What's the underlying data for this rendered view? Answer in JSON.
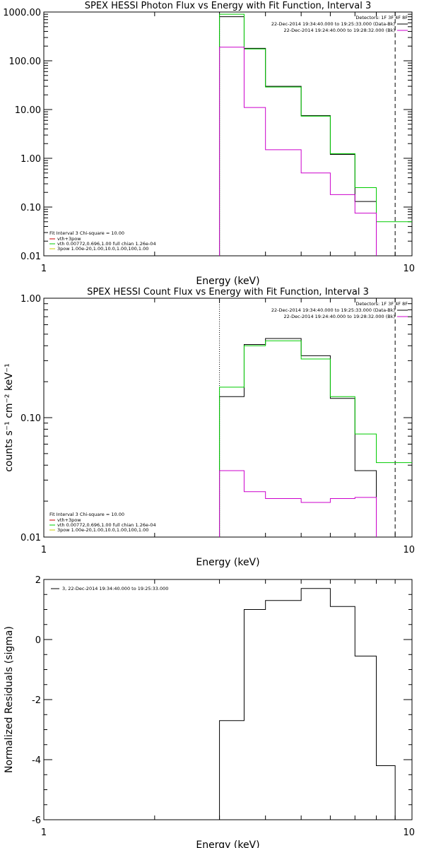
{
  "chart_data": [
    {
      "type": "line",
      "title": "SPEX HESSI Photon Flux vs Energy with Fit Function, Interval 3",
      "xlabel": "Energy (keV)",
      "ylabel": "",
      "xscale": "log",
      "yscale": "log",
      "xlim": [
        1,
        10
      ],
      "ylim": [
        0.01,
        1000
      ],
      "xticks": [
        {
          "v": 1,
          "label": "1"
        },
        {
          "v": 10,
          "label": "10"
        }
      ],
      "yticks": [
        {
          "v": 0.01,
          "label": "0.01"
        },
        {
          "v": 0.1,
          "label": "0.10"
        },
        {
          "v": 1,
          "label": "1.00"
        },
        {
          "v": 10,
          "label": "10.00"
        },
        {
          "v": 100,
          "label": "100.00"
        },
        {
          "v": 1000,
          "label": "1000.00"
        }
      ],
      "top_right_legend": {
        "header": "Detectors: 1F 3F 4F 8F",
        "entries": [
          {
            "text": "22-Dec-2014 19:34:40.000 to 19:25:33.000 (Data-Bk)",
            "color": "#000000"
          },
          {
            "text": "22-Dec-2014 19:24:40.000 to 19:28:32.000 (Bk)",
            "color": "#cc00cc"
          }
        ]
      },
      "bottom_left_legend": {
        "header": "Fit Interval 3   Chi-square = 10.00",
        "entries": [
          {
            "text": "vth+3pow",
            "color": "#cc0000"
          },
          {
            "text": "vth 0.00772,0.696,1.00  full chian 1.26e-04",
            "color": "#00cc00"
          },
          {
            "text": "3pow 1.00e-20,1.00,10.0,1.00,100,1.00",
            "color": "#cccc00"
          }
        ]
      },
      "edges": [
        3.0,
        3.5,
        4.0,
        5.0,
        6.0,
        7.0,
        8.0,
        9.0,
        10.0
      ],
      "series": [
        {
          "name": "Data-Bk",
          "color": "#000000",
          "values": [
            800,
            180,
            30,
            7.5,
            1.2,
            0.13,
            null,
            null
          ]
        },
        {
          "name": "vth+3pow",
          "color": "#00cc00",
          "values": [
            900,
            175,
            29,
            7.3,
            1.25,
            0.25,
            0.05,
            0.05
          ]
        },
        {
          "name": "Bk",
          "color": "#cc00cc",
          "values": [
            190,
            11,
            1.5,
            0.5,
            0.18,
            0.075,
            null,
            null
          ]
        }
      ],
      "dashed_vline_x": 9.0,
      "dotted_vline_x": 3.0
    },
    {
      "type": "line",
      "title": "SPEX HESSI Count Flux vs Energy with Fit Function, Interval 3",
      "xlabel": "Energy (keV)",
      "ylabel": "counts s⁻¹ cm⁻² keV⁻¹",
      "xscale": "log",
      "yscale": "log",
      "xlim": [
        1,
        10
      ],
      "ylim": [
        0.01,
        1
      ],
      "xticks": [
        {
          "v": 1,
          "label": "1"
        },
        {
          "v": 10,
          "label": "10"
        }
      ],
      "yticks": [
        {
          "v": 0.01,
          "label": "0.01"
        },
        {
          "v": 0.1,
          "label": "0.10"
        },
        {
          "v": 1,
          "label": "1.00"
        }
      ],
      "top_right_legend": {
        "header": "Detectors: 1F 3F 4F 8F",
        "entries": [
          {
            "text": "22-Dec-2014 19:34:40.000 to 19:25:33.000 (Data-Bk)",
            "color": "#000000"
          },
          {
            "text": "22-Dec-2014 19:24:40.000 to 19:28:32.000 (Bk)",
            "color": "#cc00cc"
          }
        ]
      },
      "bottom_left_legend": {
        "header": "Fit Interval 3   Chi-square = 10.00",
        "entries": [
          {
            "text": "vth+3pow",
            "color": "#cc0000"
          },
          {
            "text": "vth 0.00772,0.696,1.00  full chian 1.26e-04",
            "color": "#00cc00"
          },
          {
            "text": "3pow 1.00e-20,1.00,10.0,1.00,100,1.00",
            "color": "#cccc00"
          }
        ]
      },
      "edges": [
        3.0,
        3.5,
        4.0,
        5.0,
        6.0,
        7.0,
        8.0,
        9.0,
        10.0
      ],
      "series": [
        {
          "name": "Data-Bk",
          "color": "#000000",
          "values": [
            0.15,
            0.41,
            0.46,
            0.33,
            0.145,
            0.036,
            null,
            null
          ]
        },
        {
          "name": "vth+3pow",
          "color": "#00cc00",
          "values": [
            0.18,
            0.4,
            0.44,
            0.31,
            0.15,
            0.073,
            0.042,
            0.042
          ]
        },
        {
          "name": "Bk",
          "color": "#cc00cc",
          "values": [
            0.036,
            0.024,
            0.021,
            0.0195,
            0.021,
            0.0215,
            null,
            null
          ]
        }
      ],
      "dashed_vline_x": 9.0,
      "dotted_vline_x": 3.0
    },
    {
      "type": "line",
      "title": "",
      "xlabel": "Energy (keV)",
      "ylabel": "Normalized Residuals (sigma)",
      "xscale": "log",
      "yscale": "linear",
      "xlim": [
        1,
        10
      ],
      "ylim": [
        -6,
        2
      ],
      "xticks": [
        {
          "v": 1,
          "label": "1"
        },
        {
          "v": 10,
          "label": "10"
        }
      ],
      "yticks": [
        {
          "v": -6,
          "label": "-6"
        },
        {
          "v": -4,
          "label": "-4"
        },
        {
          "v": -2,
          "label": "-2"
        },
        {
          "v": 0,
          "label": "0"
        },
        {
          "v": 2,
          "label": "2"
        }
      ],
      "top_left_legend": {
        "entries": [
          {
            "text": "3, 22-Dec-2014 19:34:40.000 to 19:25:33.000",
            "color": "#000000"
          }
        ]
      },
      "edges": [
        3.0,
        3.5,
        4.0,
        5.0,
        6.0,
        7.0,
        8.0,
        9.0
      ],
      "series": [
        {
          "name": "3, 22-Dec-2014 19:34:40.000 to 19:25:33.000",
          "color": "#000000",
          "values": [
            -2.7,
            1.0,
            1.3,
            1.7,
            1.1,
            -0.55,
            -4.2
          ]
        }
      ]
    }
  ]
}
